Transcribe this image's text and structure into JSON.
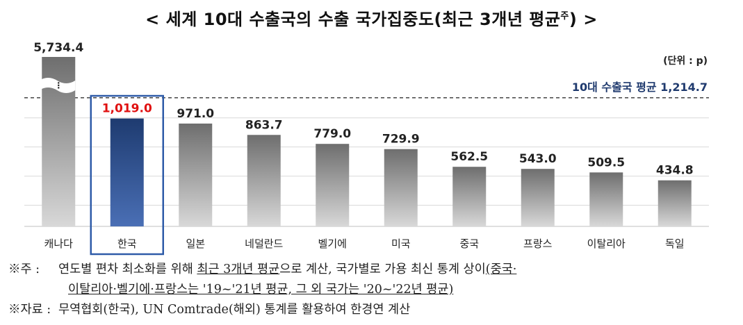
{
  "title": {
    "text": "< 세계 10대 수출국의 수출 국가집중도(최근 3개년 평균",
    "superscript": "주",
    "close": ") >"
  },
  "colors": {
    "highlight_box": "#2E5BA8",
    "highlight_label": "#E01010",
    "avg_text": "#1F3A6E",
    "bar_gray_top": "#6E6E6E",
    "bar_gray_bottom": "#D8D8D8",
    "bar_blue_top": "#1E3B70",
    "bar_blue_bottom": "#4A6FB5"
  },
  "chart_data": {
    "type": "bar",
    "title": "< 세계 10대 수출국의 수출 국가집중도(최근 3개년 평균주) >",
    "unit_label": "(단위 : p)",
    "categories": [
      "캐나다",
      "한국",
      "일본",
      "네덜란드",
      "벨기에",
      "미국",
      "중국",
      "프랑스",
      "이탈리아",
      "독일"
    ],
    "values": [
      5734.4,
      1019.0,
      971.0,
      863.7,
      779.0,
      729.9,
      562.5,
      543.0,
      509.5,
      434.8
    ],
    "value_labels": [
      "5,734.4",
      "1,019.0",
      "971.0",
      "863.7",
      "779.0",
      "729.9",
      "562.5",
      "543.0",
      "509.5",
      "434.8"
    ],
    "highlight_category": "한국",
    "axis_break": "캐나다",
    "reference_line": {
      "label": "10대 수출국 평균",
      "value": 1214.7,
      "value_label": "1,214.7",
      "style": "dashed"
    },
    "ylim": [
      0,
      1400
    ],
    "grid": true,
    "legend": "none"
  },
  "notes": [
    {
      "mark": "※주 :",
      "segments": [
        {
          "text": "연도별 편차 최소화를 위해 ",
          "u": false
        },
        {
          "text": "최근 3개년 평균",
          "u": true
        },
        {
          "text": "으로 계산, 국가별로 가용 최신 통계 상이",
          "u": false
        },
        {
          "text": "(중국·",
          "u": true
        }
      ],
      "continuation": [
        {
          "text": "이탈리아·벨기에·프랑스는 '19~'21년 평균, 그 외 국가는 '20~'22년 평균)",
          "u": true
        }
      ]
    },
    {
      "mark": "※자료 :",
      "segments": [
        {
          "text": "무역협회(한국), UN Comtrade(해외) 통계를 활용하여 한경연 계산",
          "u": false
        }
      ],
      "continuation": []
    }
  ]
}
